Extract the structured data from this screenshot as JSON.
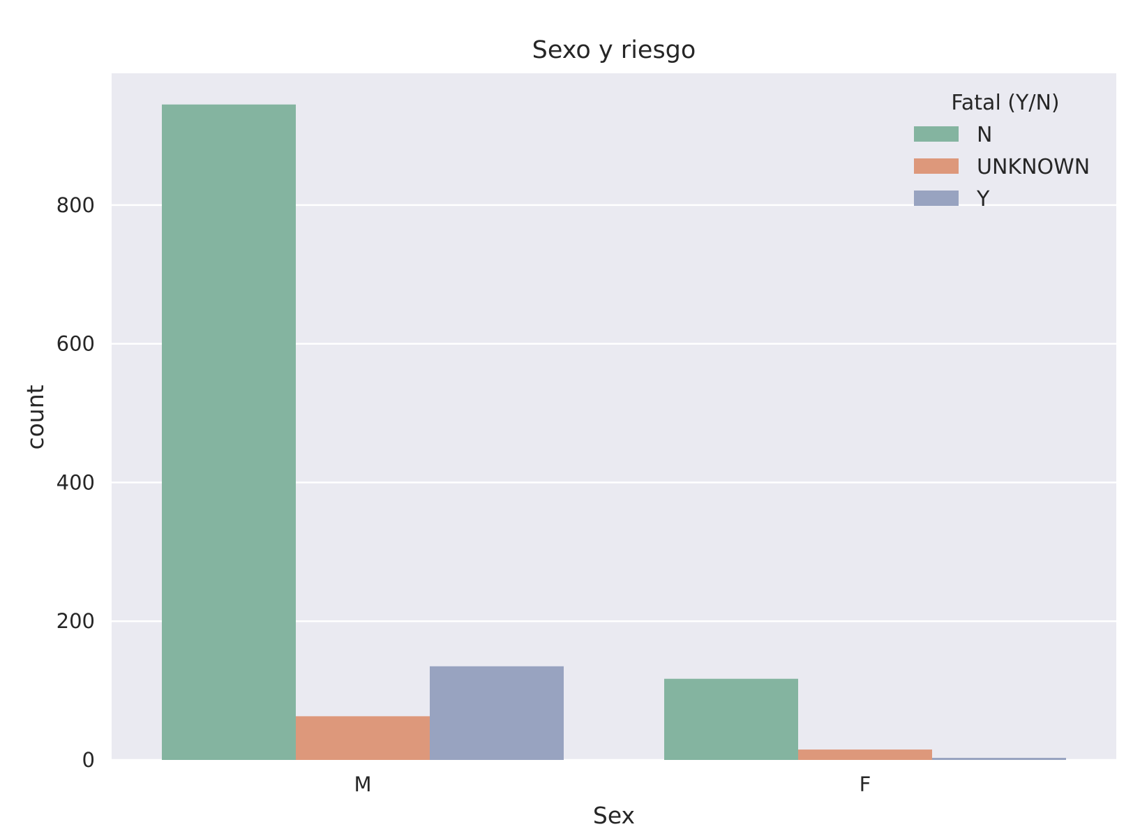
{
  "chart_data": {
    "type": "bar",
    "title": "Sexo y riesgo",
    "xlabel": "Sex",
    "ylabel": "count",
    "categories": [
      "M",
      "F"
    ],
    "series": [
      {
        "name": "N",
        "values": [
          945,
          117
        ]
      },
      {
        "name": "UNKNOWN",
        "values": [
          63,
          15
        ]
      },
      {
        "name": "Y",
        "values": [
          135,
          3
        ]
      }
    ],
    "ylim": [
      0,
      990
    ],
    "yticks": [
      0,
      200,
      400,
      600,
      800
    ],
    "grid": true,
    "legend": {
      "title": "Fatal (Y/N)",
      "placement": "top-right"
    },
    "colors": {
      "N": "#84b4a0",
      "UNKNOWN": "#dd987b",
      "Y": "#98a3c0",
      "plot_background": "#eaeaf1",
      "grid": "#ffffff"
    }
  }
}
